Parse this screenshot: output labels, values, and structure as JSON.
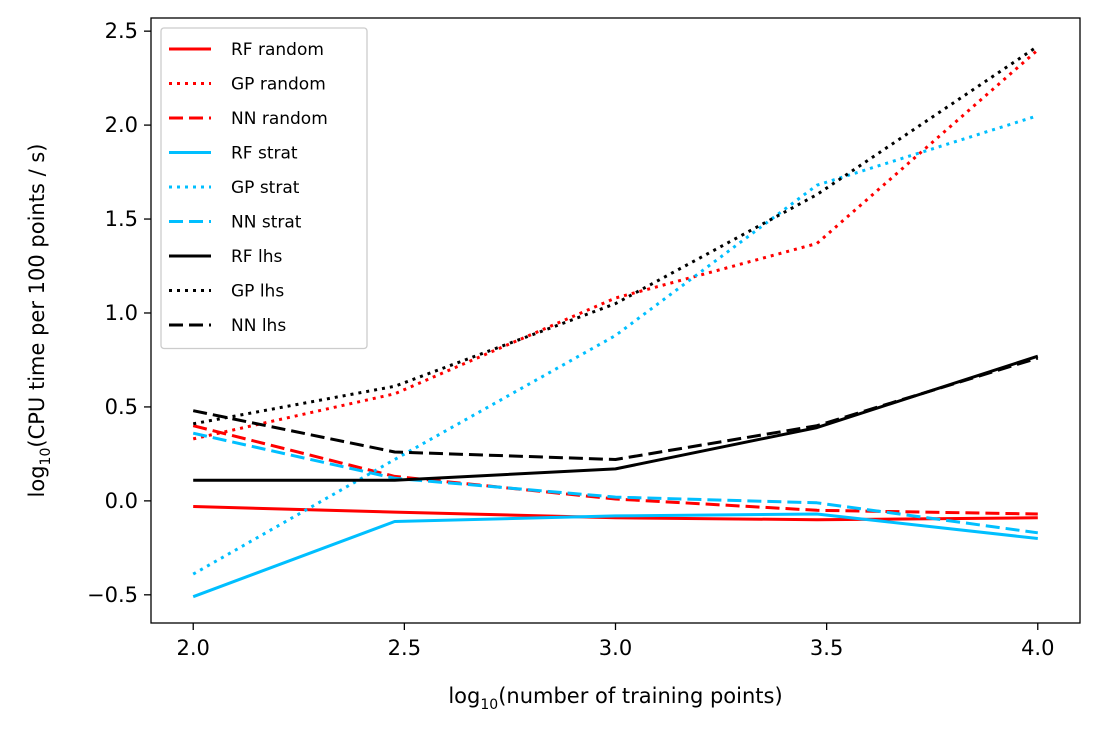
{
  "chart_data": {
    "type": "line",
    "title": "",
    "xlabel": {
      "prefix": "log",
      "sub": "10",
      "suffix": "(number of training points)"
    },
    "ylabel": {
      "prefix": "log",
      "sub": "10",
      "suffix": "(CPU time per 100 points / s)"
    },
    "xlim": [
      1.9,
      4.1
    ],
    "ylim": [
      -0.65,
      2.57
    ],
    "xticks": [
      2.0,
      2.5,
      3.0,
      3.5,
      4.0
    ],
    "xtick_labels": [
      "2.0",
      "2.5",
      "3.0",
      "3.5",
      "4.0"
    ],
    "yticks": [
      -0.5,
      0.0,
      0.5,
      1.0,
      1.5,
      2.0,
      2.5
    ],
    "ytick_labels": [
      "−0.5",
      "0.0",
      "0.5",
      "1.0",
      "1.5",
      "2.0",
      "2.5"
    ],
    "grid": false,
    "legend_position": "top-left",
    "x": [
      2.0,
      2.477,
      3.0,
      3.477,
      4.0
    ],
    "series": [
      {
        "name": "RF random",
        "color": "#ff0000",
        "style": "solid",
        "values": [
          -0.03,
          -0.06,
          -0.09,
          -0.1,
          -0.09
        ]
      },
      {
        "name": "GP random",
        "color": "#ff0000",
        "style": "dotted",
        "values": [
          0.33,
          0.57,
          1.08,
          1.37,
          2.4
        ]
      },
      {
        "name": "NN random",
        "color": "#ff0000",
        "style": "dashed",
        "values": [
          0.4,
          0.13,
          0.01,
          -0.05,
          -0.07
        ]
      },
      {
        "name": "RF strat",
        "color": "#00bfff",
        "style": "solid",
        "values": [
          -0.51,
          -0.11,
          -0.08,
          -0.07,
          -0.2
        ]
      },
      {
        "name": "GP strat",
        "color": "#00bfff",
        "style": "dotted",
        "values": [
          -0.39,
          0.22,
          0.88,
          1.68,
          2.05
        ]
      },
      {
        "name": "NN strat",
        "color": "#00bfff",
        "style": "dashed",
        "values": [
          0.36,
          0.12,
          0.02,
          -0.01,
          -0.17
        ]
      },
      {
        "name": "RF lhs",
        "color": "#000000",
        "style": "solid",
        "values": [
          0.11,
          0.11,
          0.17,
          0.39,
          0.77
        ]
      },
      {
        "name": "GP lhs",
        "color": "#000000",
        "style": "dotted",
        "values": [
          0.41,
          0.61,
          1.05,
          1.63,
          2.42
        ]
      },
      {
        "name": "NN lhs",
        "color": "#000000",
        "style": "dashed",
        "values": [
          0.48,
          0.26,
          0.22,
          0.4,
          0.76
        ]
      }
    ]
  }
}
